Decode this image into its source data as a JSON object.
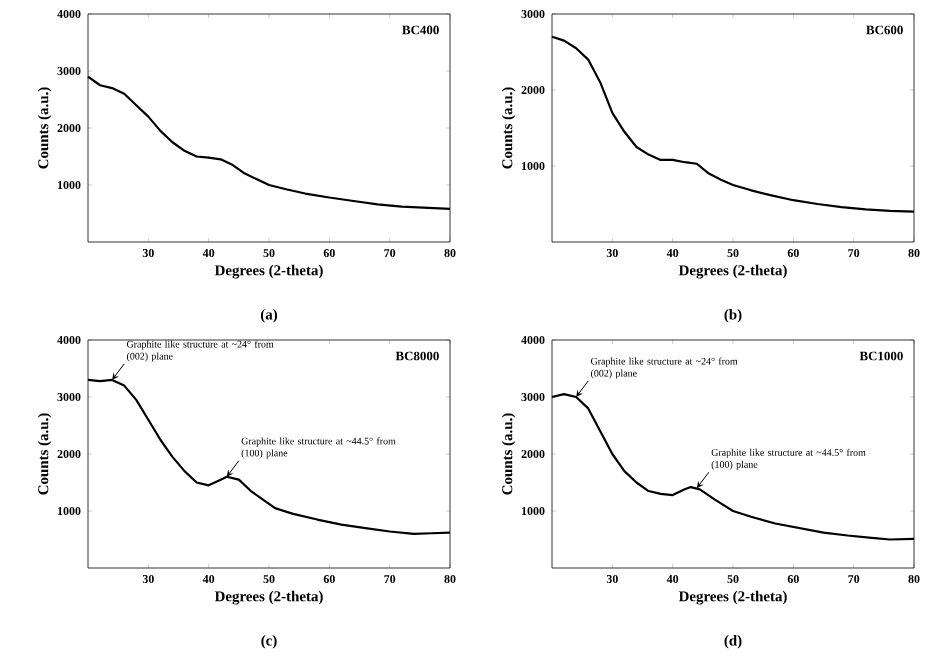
{
  "chart_data": [
    {
      "type": "line",
      "title": "BC400",
      "xlabel": "Degrees (2-theta)",
      "ylabel": "Counts (a.u.)",
      "color": "#000000",
      "xlim": [
        20,
        80
      ],
      "ylim": [
        0,
        4000
      ],
      "xticks": [
        30,
        40,
        50,
        60,
        70,
        80
      ],
      "yticks": [
        1000,
        2000,
        3000,
        4000
      ],
      "x": [
        20,
        22,
        24,
        26,
        28,
        30,
        32,
        34,
        36,
        38,
        40,
        42,
        44,
        46,
        48,
        50,
        53,
        56,
        60,
        64,
        68,
        72,
        76,
        80
      ],
      "values": [
        2900,
        2750,
        2700,
        2600,
        2400,
        2200,
        1950,
        1750,
        1600,
        1500,
        1480,
        1450,
        1350,
        1200,
        1100,
        1000,
        920,
        850,
        780,
        720,
        660,
        620,
        600,
        580
      ],
      "annotations": [
        "(a)"
      ]
    },
    {
      "type": "line",
      "title": "BC600",
      "xlabel": "Degrees (2-theta)",
      "ylabel": "Counts (a.u.)",
      "color": "#000000",
      "xlim": [
        20,
        80
      ],
      "ylim": [
        0,
        3000
      ],
      "xticks": [
        30,
        40,
        50,
        60,
        70,
        80
      ],
      "yticks": [
        1000,
        2000,
        3000
      ],
      "x": [
        20,
        22,
        24,
        26,
        28,
        30,
        32,
        34,
        36,
        38,
        40,
        42,
        44,
        46,
        48,
        50,
        53,
        56,
        60,
        64,
        68,
        72,
        76,
        80
      ],
      "values": [
        2700,
        2650,
        2550,
        2400,
        2100,
        1700,
        1450,
        1250,
        1150,
        1080,
        1080,
        1050,
        1030,
        900,
        820,
        750,
        680,
        620,
        550,
        500,
        460,
        430,
        410,
        400
      ],
      "annotations": [
        "(b)"
      ]
    },
    {
      "type": "line",
      "title": "BC8000",
      "xlabel": "Degrees (2-theta)",
      "ylabel": "Counts (a.u.)",
      "color": "#000000",
      "xlim": [
        20,
        80
      ],
      "ylim": [
        0,
        4000
      ],
      "xticks": [
        30,
        40,
        50,
        60,
        70,
        80
      ],
      "yticks": [
        1000,
        2000,
        3000,
        4000
      ],
      "x": [
        20,
        22,
        24,
        26,
        28,
        30,
        32,
        34,
        36,
        38,
        40,
        42,
        43,
        45,
        47,
        49,
        51,
        54,
        58,
        62,
        66,
        70,
        74,
        77,
        80
      ],
      "values": [
        3300,
        3280,
        3300,
        3200,
        2950,
        2600,
        2250,
        1950,
        1700,
        1500,
        1450,
        1550,
        1600,
        1550,
        1350,
        1200,
        1050,
        950,
        850,
        760,
        700,
        640,
        600,
        610,
        620
      ],
      "annotations": [
        "(c)",
        {
          "text": "Graphite like structure at ~24° from (002) plane",
          "x": 24,
          "y": 3300
        },
        {
          "text": "Graphite like structure at ~44.5° from (100) plane",
          "x": 43,
          "y": 1600
        }
      ]
    },
    {
      "type": "line",
      "title": "BC1000",
      "xlabel": "Degrees (2-theta)",
      "ylabel": "Counts (a.u.)",
      "color": "#000000",
      "xlim": [
        20,
        80
      ],
      "ylim": [
        0,
        4000
      ],
      "xticks": [
        30,
        40,
        50,
        60,
        70,
        80
      ],
      "yticks": [
        1000,
        2000,
        3000,
        4000
      ],
      "x": [
        20,
        22,
        24,
        26,
        28,
        30,
        32,
        34,
        36,
        38,
        40,
        42,
        43,
        44.5,
        47,
        50,
        53,
        57,
        61,
        65,
        69,
        73,
        76,
        80
      ],
      "values": [
        3000,
        3050,
        3000,
        2800,
        2400,
        2000,
        1700,
        1500,
        1350,
        1300,
        1280,
        1380,
        1420,
        1380,
        1200,
        1000,
        900,
        780,
        700,
        620,
        570,
        530,
        500,
        510
      ],
      "annotations": [
        "(d)",
        {
          "text": "Graphite like structure at ~24° from (002) plane",
          "x": 24,
          "y": 3000
        },
        {
          "text": "Graphite like structure at ~44.5° from (100) plane",
          "x": 44,
          "y": 1400
        }
      ]
    }
  ]
}
